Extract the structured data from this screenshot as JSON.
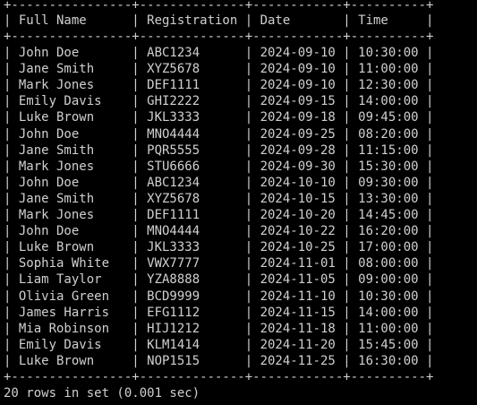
{
  "terminal": {
    "colors": {
      "background": "#000000",
      "text": "#d0d0d0"
    },
    "border_line": "+----------------+--------------+------------+----------+",
    "columns": [
      "Full Name",
      "Registration",
      "Date",
      "Time"
    ],
    "rows": [
      [
        "John Doe",
        "ABC1234",
        "2024-09-10",
        "10:30:00"
      ],
      [
        "Jane Smith",
        "XYZ5678",
        "2024-09-10",
        "11:00:00"
      ],
      [
        "Mark Jones",
        "DEF1111",
        "2024-09-10",
        "12:30:00"
      ],
      [
        "Emily Davis",
        "GHI2222",
        "2024-09-15",
        "14:00:00"
      ],
      [
        "Luke Brown",
        "JKL3333",
        "2024-09-18",
        "09:45:00"
      ],
      [
        "John Doe",
        "MNO4444",
        "2024-09-25",
        "08:20:00"
      ],
      [
        "Jane Smith",
        "PQR5555",
        "2024-09-28",
        "11:15:00"
      ],
      [
        "Mark Jones",
        "STU6666",
        "2024-09-30",
        "15:30:00"
      ],
      [
        "John Doe",
        "ABC1234",
        "2024-10-10",
        "09:30:00"
      ],
      [
        "Jane Smith",
        "XYZ5678",
        "2024-10-15",
        "13:30:00"
      ],
      [
        "Mark Jones",
        "DEF1111",
        "2024-10-20",
        "14:45:00"
      ],
      [
        "John Doe",
        "MNO4444",
        "2024-10-22",
        "16:20:00"
      ],
      [
        "Luke Brown",
        "JKL3333",
        "2024-10-25",
        "17:00:00"
      ],
      [
        "Sophia White",
        "VWX7777",
        "2024-11-01",
        "08:00:00"
      ],
      [
        "Liam Taylor",
        "YZA8888",
        "2024-11-05",
        "09:00:00"
      ],
      [
        "Olivia Green",
        "BCD9999",
        "2024-11-10",
        "10:30:00"
      ],
      [
        "James Harris",
        "EFG1112",
        "2024-11-15",
        "14:00:00"
      ],
      [
        "Mia Robinson",
        "HIJ1212",
        "2024-11-18",
        "11:00:00"
      ],
      [
        "Emily Davis",
        "KLM1414",
        "2024-11-20",
        "15:45:00"
      ],
      [
        "Luke Brown",
        "NOP1515",
        "2024-11-25",
        "16:30:00"
      ]
    ],
    "status": "20 rows in set (0.001 sec)"
  }
}
